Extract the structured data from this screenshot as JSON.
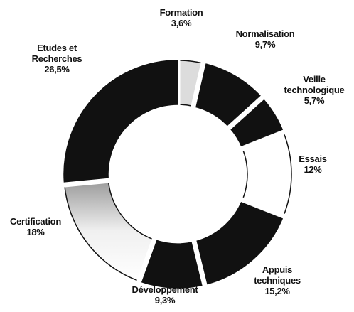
{
  "chart_data": {
    "type": "donut",
    "categories": [
      "Formation",
      "Normalisation",
      "Veille technologique",
      "Essais",
      "Appuis techniques",
      "Développement",
      "Certification",
      "Etudes et Recherches"
    ],
    "values": [
      3.6,
      9.7,
      5.7,
      12,
      15.2,
      9.3,
      18,
      26.5
    ],
    "value_labels": [
      "3,6%",
      "9,7%",
      "5,7%",
      "12%",
      "15,2%",
      "9,3%",
      "18%",
      "26,5%"
    ],
    "colors": [
      "#dcdcdc",
      "#111111",
      "#111111",
      "#ffffff",
      "#111111",
      "#111111",
      "#e6e6e6",
      "#111111"
    ]
  }
}
